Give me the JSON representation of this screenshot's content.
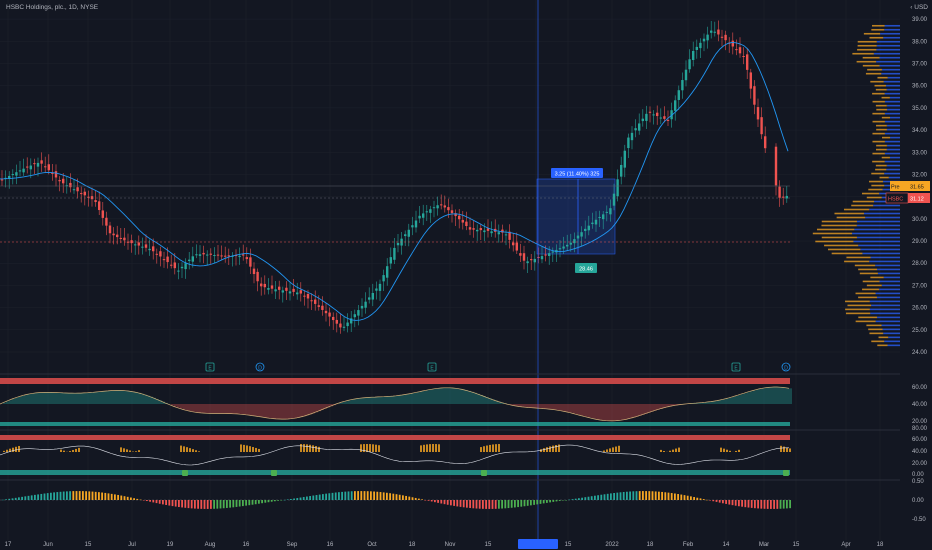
{
  "header": {
    "symbol_line": "HSBC Holdings, plc., 1D, NYSE",
    "currency": "‹ USD"
  },
  "colors": {
    "bg": "#131722",
    "up": "#26a69a",
    "down": "#ef5350",
    "ma": "#2196f3",
    "vp_blue": "#2962ff",
    "vp_orange": "#f6a623",
    "grid": "#1e222d"
  },
  "chart_data": [
    {
      "type": "candlestick",
      "title": "HSBC Holdings, plc., 1D, NYSE",
      "ylim": [
        24.0,
        39.5
      ],
      "y_ticks": [
        "24.00",
        "25.00",
        "26.00",
        "27.00",
        "28.00",
        "29.00",
        "30.00",
        "31.00",
        "32.00",
        "33.00",
        "34.00",
        "35.00",
        "36.00",
        "37.00",
        "38.00",
        "39.00"
      ],
      "x_ticks": [
        "17",
        "Jun",
        "15",
        "Jul",
        "19",
        "Aug",
        "16",
        "Sep",
        "16",
        "Oct",
        "18",
        "Nov",
        "15",
        "03 Dec '21",
        "15",
        "2022",
        "18",
        "Feb",
        "14",
        "Mar",
        "15",
        "Apr",
        "18"
      ],
      "series": [
        {
          "name": "HSBC",
          "last_value": "31.12"
        },
        {
          "name": "Pre",
          "last_value": "31.65"
        }
      ],
      "measure": {
        "label": "3.25 (11.40%) 325",
        "from": 28.5,
        "to": 31.8,
        "low_label": "28.46"
      },
      "events": [
        "E",
        "D",
        "E",
        "E",
        "D"
      ]
    },
    {
      "type": "line",
      "name": "oscillator-1",
      "y_ticks": [
        "20.00",
        "40.00",
        "60.00"
      ]
    },
    {
      "type": "line",
      "name": "oscillator-2",
      "y_ticks": [
        "0.00",
        "20.00",
        "40.00",
        "60.00",
        "80.00"
      ]
    },
    {
      "type": "bar",
      "name": "momentum-histogram",
      "y_ticks": [
        "0.50",
        "0.00",
        "-0.50"
      ]
    }
  ]
}
